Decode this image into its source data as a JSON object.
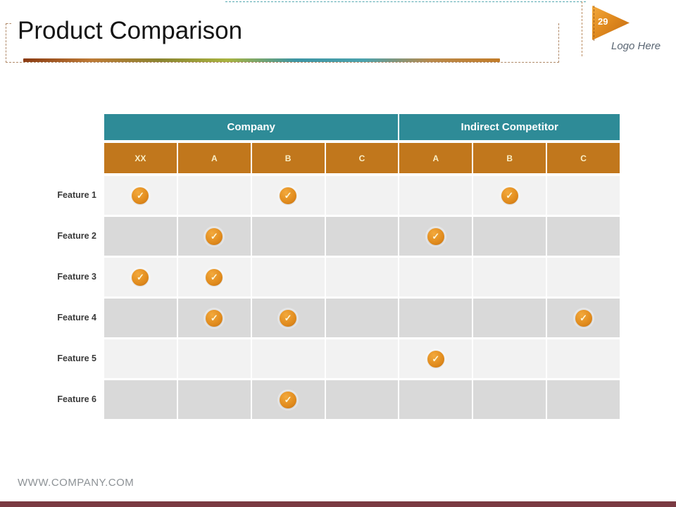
{
  "slide": {
    "title": "Product Comparison",
    "page_number": "29",
    "logo_placeholder": "Logo Here",
    "footer_url": "WWW.COMPANY.COM"
  },
  "colors": {
    "header_teal": "#2e8b97",
    "header_orange": "#c1771c",
    "header_orange_text": "#f9efc7",
    "row_light": "#f2f2f2",
    "row_dark": "#d9d9d9",
    "check_circle": "#e08a1c",
    "check_glyph": "#fdf6d8",
    "triangle_orange": "#d8821f",
    "bottom_bar": "#7a3a42",
    "logo_text": "#5a6673",
    "footer_text": "#8d9296",
    "feature_label": "#3a3a3a",
    "accent_line_gradient": [
      "#8a3a12",
      "#bd7a35",
      "#8a8430",
      "#a8b33f",
      "#3d95a4",
      "#4ba2ad",
      "#b9894a",
      "#c27c28"
    ]
  },
  "table": {
    "check_icon": "✓",
    "group_headers": [
      {
        "label": "Company",
        "span": 4
      },
      {
        "label": "Indirect Competitor",
        "span": 3
      }
    ],
    "column_headers": [
      "XX",
      "A",
      "B",
      "C",
      "A",
      "B",
      "C"
    ],
    "rows": [
      {
        "label": "Feature 1",
        "checks": [
          1,
          0,
          1,
          0,
          0,
          1,
          0
        ]
      },
      {
        "label": "Feature 2",
        "checks": [
          0,
          1,
          0,
          0,
          1,
          0,
          0
        ]
      },
      {
        "label": "Feature 3",
        "checks": [
          1,
          1,
          0,
          0,
          0,
          0,
          0
        ]
      },
      {
        "label": "Feature 4",
        "checks": [
          0,
          1,
          1,
          0,
          0,
          0,
          1
        ]
      },
      {
        "label": "Feature 5",
        "checks": [
          0,
          0,
          0,
          0,
          1,
          0,
          0
        ]
      },
      {
        "label": "Feature 6",
        "checks": [
          0,
          0,
          1,
          0,
          0,
          0,
          0
        ]
      }
    ]
  }
}
